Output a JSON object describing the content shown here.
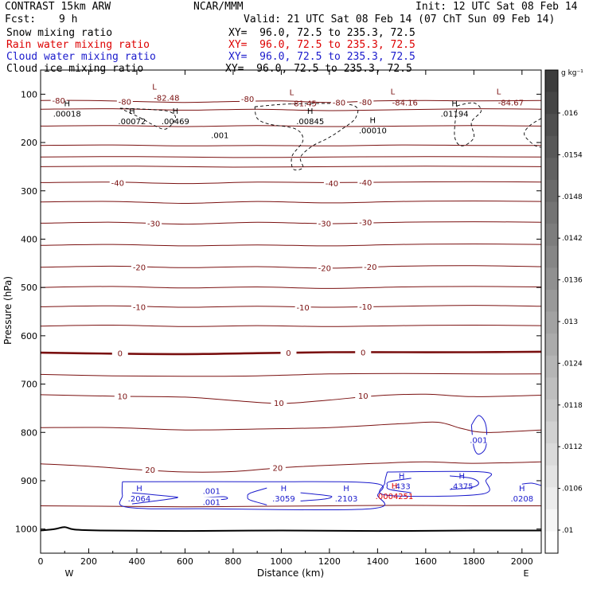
{
  "header": {
    "model": "CONTRAST 15km ARW",
    "center": "NCAR/MMM",
    "init": "Init: 12 UTC Sat 08 Feb 14",
    "fcst_label": "Fcst:",
    "fcst_value": "9 h",
    "valid": "Valid: 21 UTC Sat 08 Feb 14 (07 ChT Sun 09 Feb 14)"
  },
  "legend": [
    {
      "name": "Snow mixing ratio",
      "xy": "XY=  96.0, 72.5 to 235.3, 72.5",
      "color": "#000000"
    },
    {
      "name": "Rain water mixing ratio",
      "xy": "XY=  96.0, 72.5 to 235.3, 72.5",
      "color": "#dd0000"
    },
    {
      "name": "Cloud water mixing ratio",
      "xy": "XY=  96.0, 72.5 to 235.3, 72.5",
      "color": "#1a1acc"
    },
    {
      "name": "Cloud ice mixing ratio",
      "xy": "XY=  96.0, 72.5 to 235.3, 72.5",
      "color": "#000000"
    }
  ],
  "chart_data": {
    "type": "contour",
    "xlabel": "Distance (km)",
    "ylabel": "Pressure (hPa)",
    "xlim": [
      0,
      2080
    ],
    "ylim": [
      1050,
      50
    ],
    "x_ticks": [
      0,
      200,
      400,
      600,
      800,
      1000,
      1200,
      1400,
      1600,
      1800,
      2000
    ],
    "x_tick_labels": [
      "0",
      "200",
      "400",
      "600",
      "800",
      "1000",
      "1200",
      "1400",
      "1600",
      "1800",
      "2000"
    ],
    "y_ticks": [
      100,
      200,
      300,
      400,
      500,
      600,
      700,
      800,
      900,
      1000
    ],
    "y_tick_labels": [
      "100",
      "200",
      "300",
      "400",
      "500",
      "600",
      "700",
      "800",
      "900",
      "1000"
    ],
    "west_label": "W",
    "east_label": "E",
    "colors": {
      "temperature": "#7a1010",
      "cloud_water": "#1a1acc",
      "rain": "#dd0000",
      "ice": "#000000",
      "surface": "#000000"
    },
    "temperature_contours": [
      {
        "level": -80,
        "label": "-80",
        "points": [
          [
            0,
            113
          ],
          [
            200,
            113
          ],
          [
            400,
            115
          ],
          [
            600,
            117
          ],
          [
            800,
            115
          ],
          [
            1000,
            114
          ],
          [
            1200,
            117
          ],
          [
            1400,
            114
          ],
          [
            1600,
            113
          ],
          [
            1800,
            114
          ],
          [
            2080,
            113
          ]
        ]
      },
      {
        "level": -70,
        "label": "",
        "points": [
          [
            0,
            131
          ],
          [
            300,
            130
          ],
          [
            600,
            133
          ],
          [
            900,
            131
          ],
          [
            1200,
            134
          ],
          [
            1500,
            132
          ],
          [
            1800,
            130
          ],
          [
            2080,
            131
          ]
        ]
      },
      {
        "level": -60,
        "label": "",
        "points": [
          [
            0,
            166
          ],
          [
            300,
            165
          ],
          [
            600,
            167
          ],
          [
            900,
            165
          ],
          [
            1200,
            167
          ],
          [
            1500,
            166
          ],
          [
            1800,
            165
          ],
          [
            2080,
            166
          ]
        ]
      },
      {
        "level": -55,
        "label": "",
        "points": [
          [
            0,
            206
          ],
          [
            300,
            205
          ],
          [
            600,
            207
          ],
          [
            900,
            206
          ],
          [
            1200,
            207
          ],
          [
            1500,
            205
          ],
          [
            1800,
            206
          ],
          [
            2080,
            206
          ]
        ]
      },
      {
        "level": -50,
        "label": "",
        "points": [
          [
            0,
            230
          ],
          [
            400,
            229
          ],
          [
            800,
            231
          ],
          [
            1200,
            230
          ],
          [
            1600,
            229
          ],
          [
            2080,
            230
          ]
        ]
      },
      {
        "level": -45,
        "label": "",
        "points": [
          [
            0,
            250
          ],
          [
            400,
            249
          ],
          [
            800,
            251
          ],
          [
            1200,
            250
          ],
          [
            1600,
            249
          ],
          [
            2080,
            250
          ]
        ]
      },
      {
        "level": -40,
        "label": "-40",
        "points": [
          [
            0,
            283
          ],
          [
            300,
            282
          ],
          [
            600,
            285
          ],
          [
            900,
            282
          ],
          [
            1200,
            283
          ],
          [
            1500,
            282
          ],
          [
            1800,
            281
          ],
          [
            2080,
            282
          ]
        ]
      },
      {
        "level": -35,
        "label": "",
        "points": [
          [
            0,
            323
          ],
          [
            300,
            322
          ],
          [
            600,
            326
          ],
          [
            900,
            322
          ],
          [
            1200,
            325
          ],
          [
            1500,
            322
          ],
          [
            1800,
            321
          ],
          [
            2080,
            322
          ]
        ]
      },
      {
        "level": -30,
        "label": "-30",
        "points": [
          [
            0,
            367
          ],
          [
            300,
            365
          ],
          [
            600,
            369
          ],
          [
            900,
            365
          ],
          [
            1200,
            368
          ],
          [
            1500,
            365
          ],
          [
            1800,
            364
          ],
          [
            2080,
            365
          ]
        ]
      },
      {
        "level": -25,
        "label": "",
        "points": [
          [
            0,
            413
          ],
          [
            300,
            411
          ],
          [
            600,
            414
          ],
          [
            900,
            412
          ],
          [
            1200,
            414
          ],
          [
            1500,
            411
          ],
          [
            1800,
            410
          ],
          [
            2080,
            411
          ]
        ]
      },
      {
        "level": -20,
        "label": "-20",
        "points": [
          [
            0,
            458
          ],
          [
            300,
            456
          ],
          [
            600,
            459
          ],
          [
            900,
            457
          ],
          [
            1200,
            460
          ],
          [
            1500,
            456
          ],
          [
            1800,
            455
          ],
          [
            2080,
            457
          ]
        ]
      },
      {
        "level": -15,
        "label": "",
        "points": [
          [
            0,
            500
          ],
          [
            300,
            498
          ],
          [
            600,
            501
          ],
          [
            900,
            499
          ],
          [
            1200,
            502
          ],
          [
            1500,
            499
          ],
          [
            1800,
            498
          ],
          [
            2080,
            499
          ]
        ]
      },
      {
        "level": -10,
        "label": "-10",
        "points": [
          [
            0,
            540
          ],
          [
            300,
            538
          ],
          [
            600,
            541
          ],
          [
            900,
            539
          ],
          [
            1200,
            541
          ],
          [
            1500,
            539
          ],
          [
            1800,
            537
          ],
          [
            2080,
            539
          ]
        ]
      },
      {
        "level": -5,
        "label": "",
        "points": [
          [
            0,
            580
          ],
          [
            300,
            578
          ],
          [
            600,
            581
          ],
          [
            900,
            579
          ],
          [
            1200,
            581
          ],
          [
            1500,
            579
          ],
          [
            1800,
            578
          ],
          [
            2080,
            579
          ]
        ]
      },
      {
        "level": 0,
        "label": "0",
        "points": [
          [
            0,
            635
          ],
          [
            300,
            637
          ],
          [
            600,
            638
          ],
          [
            900,
            636
          ],
          [
            1200,
            634
          ],
          [
            1500,
            634
          ],
          [
            1800,
            634
          ],
          [
            2080,
            633
          ]
        ]
      },
      {
        "level": 5,
        "label": "",
        "points": [
          [
            0,
            680
          ],
          [
            300,
            683
          ],
          [
            600,
            684
          ],
          [
            900,
            683
          ],
          [
            1200,
            679
          ],
          [
            1500,
            678
          ],
          [
            1800,
            679
          ],
          [
            2080,
            679
          ]
        ]
      },
      {
        "level": 10,
        "label": "10",
        "points": [
          [
            0,
            722
          ],
          [
            300,
            725
          ],
          [
            600,
            727
          ],
          [
            800,
            734
          ],
          [
            1000,
            740
          ],
          [
            1200,
            733
          ],
          [
            1400,
            724
          ],
          [
            1600,
            721
          ],
          [
            1800,
            726
          ],
          [
            2080,
            723
          ]
        ]
      },
      {
        "level": 15,
        "label": "",
        "points": [
          [
            0,
            790
          ],
          [
            300,
            790
          ],
          [
            600,
            795
          ],
          [
            900,
            793
          ],
          [
            1200,
            790
          ],
          [
            1500,
            782
          ],
          [
            1650,
            779
          ],
          [
            1750,
            792
          ],
          [
            1850,
            800
          ],
          [
            2080,
            795
          ]
        ]
      },
      {
        "level": 20,
        "label": "20",
        "points": [
          [
            0,
            865
          ],
          [
            200,
            870
          ],
          [
            400,
            877
          ],
          [
            600,
            882
          ],
          [
            800,
            881
          ],
          [
            1000,
            873
          ],
          [
            1200,
            868
          ],
          [
            1400,
            864
          ],
          [
            1600,
            861
          ],
          [
            1800,
            864
          ],
          [
            2080,
            861
          ]
        ]
      },
      {
        "level": 25,
        "label": "",
        "points": [
          [
            0,
            952
          ],
          [
            300,
            953
          ],
          [
            600,
            954
          ],
          [
            900,
            953
          ],
          [
            1200,
            952
          ],
          [
            1500,
            951
          ],
          [
            1800,
            952
          ],
          [
            2080,
            952
          ]
        ]
      }
    ],
    "temperature_labels": [
      {
        "text": "-80",
        "x": 75,
        "p": 113
      },
      {
        "text": "-80",
        "x": 350,
        "p": 115
      },
      {
        "text": "-80",
        "x": 860,
        "p": 109
      },
      {
        "text": "-80",
        "x": 1240,
        "p": 117
      },
      {
        "text": "-80",
        "x": 1350,
        "p": 116
      },
      {
        "text": "-40",
        "x": 320,
        "p": 283
      },
      {
        "text": "-40",
        "x": 1210,
        "p": 284
      },
      {
        "text": "-40",
        "x": 1350,
        "p": 282
      },
      {
        "text": "-30",
        "x": 470,
        "p": 367
      },
      {
        "text": "-30",
        "x": 1180,
        "p": 367
      },
      {
        "text": "-30",
        "x": 1350,
        "p": 365
      },
      {
        "text": "-20",
        "x": 410,
        "p": 458
      },
      {
        "text": "-20",
        "x": 1180,
        "p": 459
      },
      {
        "text": "-20",
        "x": 1370,
        "p": 457
      },
      {
        "text": "-10",
        "x": 410,
        "p": 540
      },
      {
        "text": "-10",
        "x": 1090,
        "p": 541
      },
      {
        "text": "-10",
        "x": 1350,
        "p": 539
      },
      {
        "text": "0",
        "x": 330,
        "p": 636
      },
      {
        "text": "0",
        "x": 1030,
        "p": 635
      },
      {
        "text": "0",
        "x": 1340,
        "p": 634
      },
      {
        "text": "10",
        "x": 340,
        "p": 725
      },
      {
        "text": "10",
        "x": 990,
        "p": 739
      },
      {
        "text": "10",
        "x": 1340,
        "p": 724
      },
      {
        "text": "20",
        "x": 455,
        "p": 877
      },
      {
        "text": "20",
        "x": 985,
        "p": 873
      }
    ],
    "low_markers": [
      {
        "x": 530,
        "p": 84,
        "value": "-82.48"
      },
      {
        "x": 1100,
        "p": 95,
        "value": "-81.45"
      },
      {
        "x": 1520,
        "p": 94,
        "value": "-84.16"
      },
      {
        "x": 1960,
        "p": 94,
        "value": "-84.67"
      }
    ],
    "high_markers": [
      {
        "x": 110,
        "p": 133,
        "value": ".00018",
        "color": "#000000"
      },
      {
        "x": 380,
        "p": 149,
        "value": ".00072",
        "color": "#000000"
      },
      {
        "x": 560,
        "p": 149,
        "value": ".00469",
        "color": "#000000"
      },
      {
        "x": 1120,
        "p": 149,
        "value": ".00845",
        "color": "#000000"
      },
      {
        "x": 1380,
        "p": 168,
        "value": ".00010",
        "color": "#000000"
      },
      {
        "x": 1720,
        "p": 133,
        "value": ".01194",
        "color": "#000000"
      },
      {
        "x": 410,
        "p": 930,
        "value": ".2064",
        "color": "#1a1acc"
      },
      {
        "x": 1010,
        "p": 930,
        "value": ".3059",
        "color": "#1a1acc"
      },
      {
        "x": 1270,
        "p": 930,
        "value": ".2103",
        "color": "#1a1acc"
      },
      {
        "x": 1500,
        "p": 904,
        "value": ".433",
        "color": "#1a1acc"
      },
      {
        "x": 1750,
        "p": 904,
        "value": ".4375",
        "color": "#1a1acc"
      },
      {
        "x": 1470,
        "p": 925,
        "value": ".0004251",
        "color": "#dd0000"
      },
      {
        "x": 2000,
        "p": 930,
        "value": ".0208",
        "color": "#1a1acc"
      }
    ],
    "ice_labels": [
      {
        "text": ".001",
        "x": 745,
        "p": 184
      }
    ],
    "cloud_water_labels": [
      {
        "text": ".001",
        "x": 710,
        "p": 921
      },
      {
        "text": ".001",
        "x": 710,
        "p": 944
      },
      {
        "text": ".001",
        "x": 1820,
        "p": 815
      }
    ],
    "surface_pressure": [
      [
        0,
        1003
      ],
      [
        60,
        1000
      ],
      [
        100,
        996
      ],
      [
        140,
        1001
      ],
      [
        250,
        1003
      ],
      [
        600,
        1004
      ],
      [
        1000,
        1003
      ],
      [
        1400,
        1004
      ],
      [
        1800,
        1003
      ],
      [
        2080,
        1003
      ]
    ],
    "colorbar": {
      "unit": "g kg⁻¹",
      "labels": [
        ".016",
        ".0154",
        ".0148",
        ".0142",
        ".0136",
        ".013",
        ".0124",
        ".0118",
        ".0112",
        ".0106",
        ".01"
      ]
    }
  }
}
